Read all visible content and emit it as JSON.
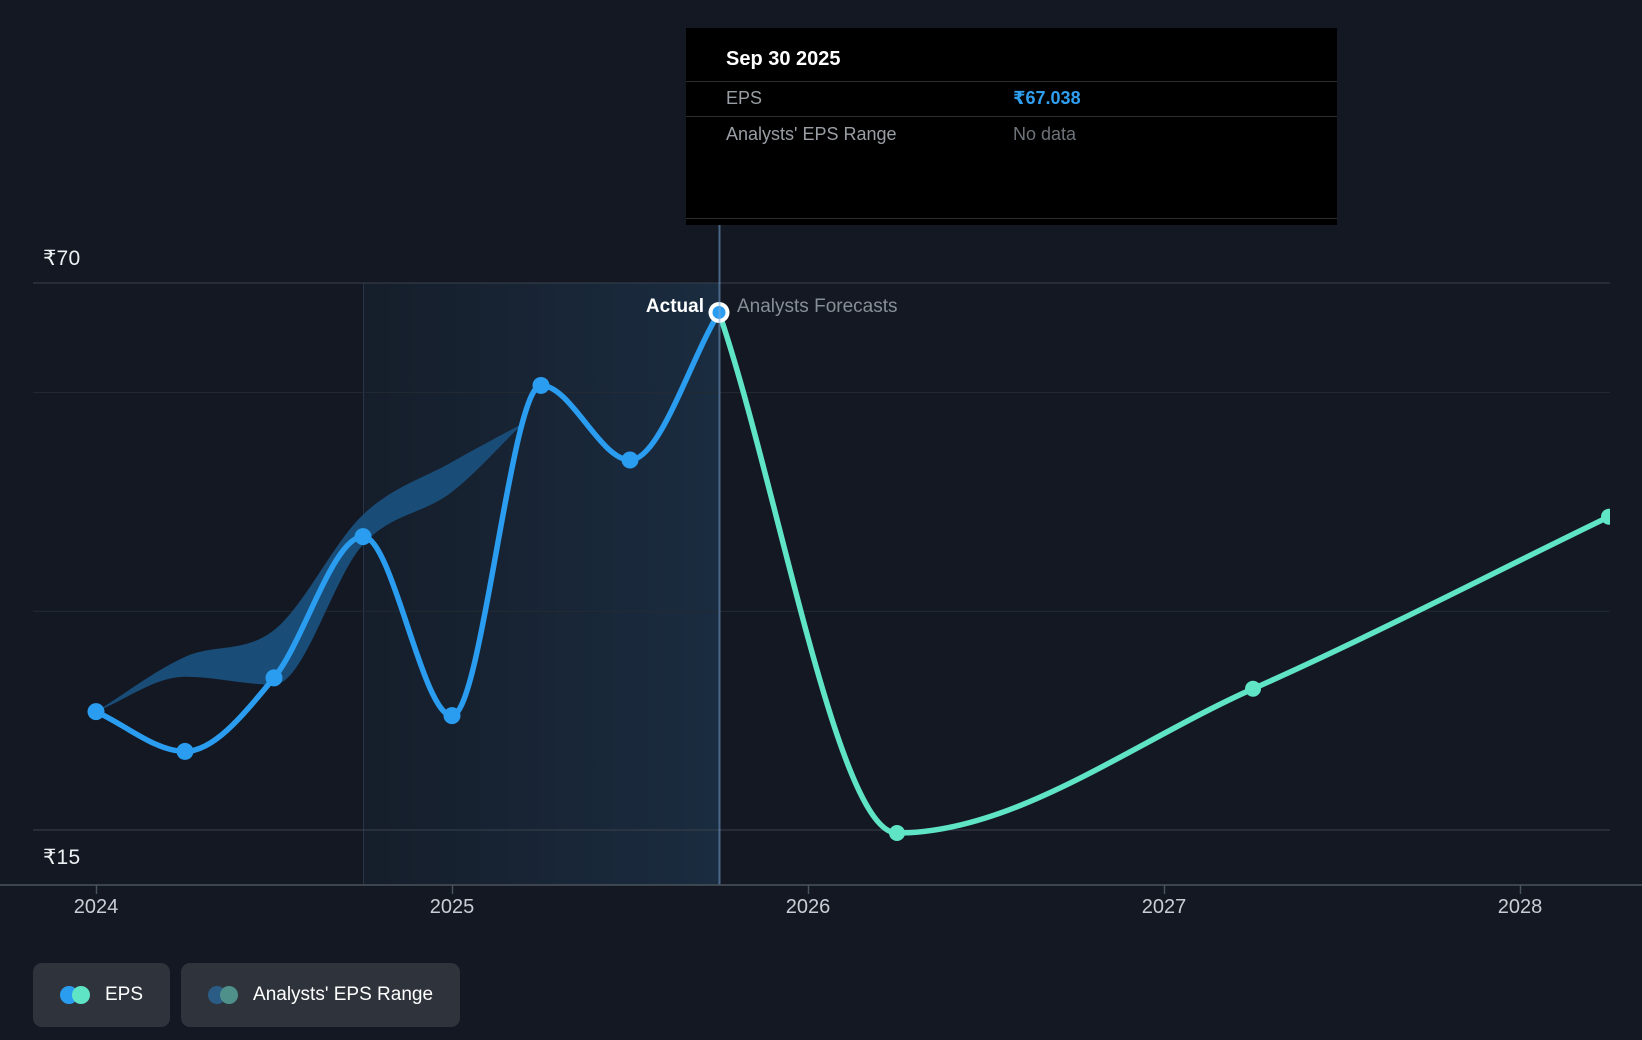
{
  "chart": {
    "y_axis": {
      "top_label": "₹70",
      "bottom_label": "₹15"
    },
    "phase": {
      "actual_label": "Actual",
      "forecast_label": "Analysts Forecasts"
    }
  },
  "tooltip": {
    "title": "Sep 30 2025",
    "rows": [
      {
        "label": "EPS",
        "value": "₹67.038"
      },
      {
        "label": "Analysts' EPS Range",
        "value": "No data"
      }
    ]
  },
  "legend": {
    "items": [
      {
        "label": "EPS",
        "colors": [
          "#2b9df0",
          "#5fe4c6"
        ]
      },
      {
        "label": "Analysts' EPS Range",
        "colors": [
          "#2b5c86",
          "#4f908a"
        ]
      }
    ]
  },
  "chart_data": {
    "type": "line",
    "title": "EPS actual and analysts forecast over time",
    "currency": "₹",
    "ylim": [
      15,
      70
    ],
    "gridline_values": [
      70,
      59,
      37,
      15
    ],
    "x_ticks": [
      {
        "label": "2024",
        "t": 2024
      },
      {
        "label": "2025",
        "t": 2025
      },
      {
        "label": "2026",
        "t": 2026
      },
      {
        "label": "2027",
        "t": 2027
      },
      {
        "label": "2028",
        "t": 2028
      }
    ],
    "today_t": 2025.75,
    "highlight_span_t": [
      2024.75,
      2025.75
    ],
    "series": [
      {
        "name": "EPS (actual)",
        "color": "#2b9df0",
        "dates": [
          "Dec 31 2023",
          "Mar 31 2024",
          "Jun 30 2024",
          "Sep 30 2024",
          "Dec 31 2024",
          "Mar 31 2025",
          "Jun 30 2025",
          "Sep 30 2025"
        ],
        "t": [
          2024.0,
          2024.25,
          2024.5,
          2024.75,
          2025.0,
          2025.25,
          2025.5,
          2025.75
        ],
        "values": [
          26.9,
          22.9,
          30.3,
          44.5,
          26.5,
          59.7,
          52.2,
          67.038
        ]
      },
      {
        "name": "EPS (analysts forecast)",
        "color": "#5fe4c6",
        "dates": [
          "Sep 30 2025",
          "Mar 31 2026",
          "Mar 31 2027",
          "Mar 31 2028"
        ],
        "t": [
          2025.75,
          2026.25,
          2027.25,
          2028.25
        ],
        "values": [
          67.038,
          14.7,
          29.2,
          46.5
        ]
      }
    ],
    "range_band": {
      "name": "Analysts' EPS Range (historical)",
      "color": "#1a5382",
      "t": [
        2024.0,
        2024.25,
        2024.5,
        2024.75,
        2025.0,
        2025.2
      ],
      "high": [
        26.9,
        32.4,
        35.1,
        46.7,
        52.0,
        55.9
      ],
      "low": [
        26.9,
        30.4,
        29.6,
        43.7,
        49.0,
        55.9
      ]
    },
    "legend_position": "bottom-left",
    "grid": true
  }
}
